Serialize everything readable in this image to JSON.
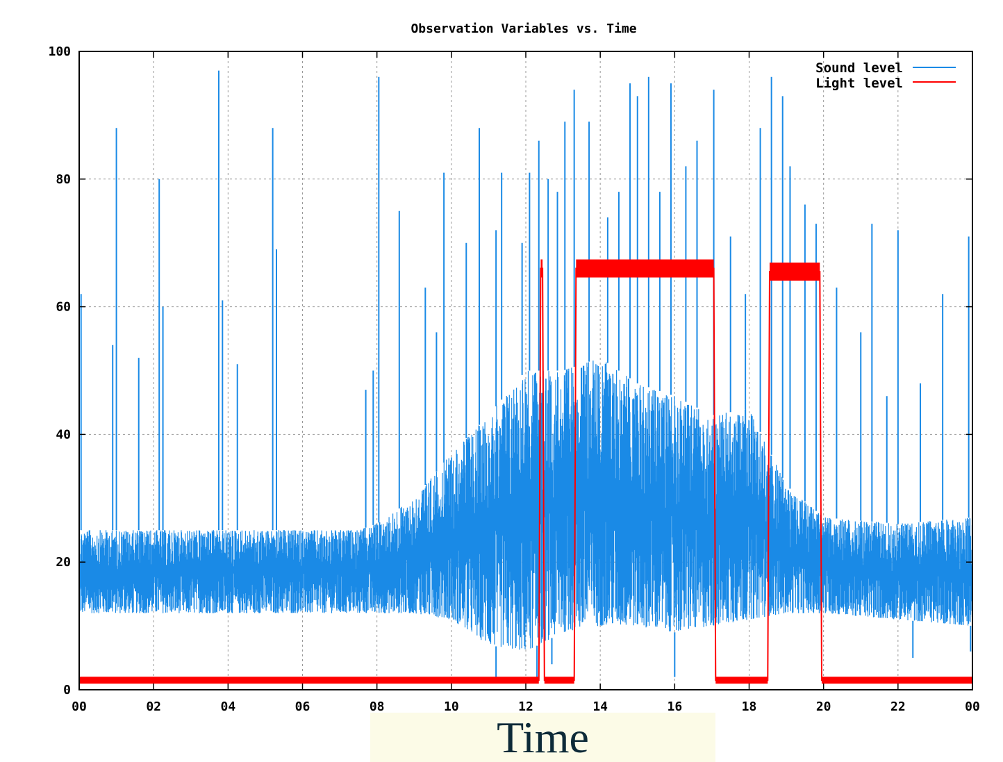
{
  "chart_data": {
    "type": "line",
    "title": "Observation Variables vs. Time",
    "xlabel": "Time",
    "ylabel": "",
    "xlim": [
      0,
      24
    ],
    "ylim": [
      0,
      100
    ],
    "x_ticks": [
      "00",
      "02",
      "04",
      "06",
      "08",
      "10",
      "12",
      "14",
      "16",
      "18",
      "20",
      "22",
      "00"
    ],
    "y_ticks": [
      "0",
      "20",
      "40",
      "60",
      "80",
      "100"
    ],
    "grid": true,
    "legend_position": "top-right",
    "series": [
      {
        "name": "Sound level",
        "color": "#1a8ae6",
        "style": "dense noisy line",
        "envelope": {
          "x": [
            0,
            2,
            4,
            6,
            7.5,
            8,
            9,
            10,
            11,
            12,
            13,
            14,
            15,
            16,
            17,
            18,
            19,
            20,
            22,
            24
          ],
          "low": [
            12,
            12,
            12,
            12,
            12,
            12,
            12,
            11,
            7,
            6,
            9,
            10,
            10,
            9,
            10,
            11,
            12,
            12,
            11,
            10
          ],
          "high": [
            25,
            25,
            25,
            25,
            25,
            26,
            30,
            37,
            43,
            50,
            50,
            52,
            48,
            46,
            43,
            44,
            32,
            27,
            26,
            27
          ]
        },
        "spikes": [
          {
            "x": 0.05,
            "y": 62
          },
          {
            "x": 0.9,
            "y": 54
          },
          {
            "x": 1.0,
            "y": 88
          },
          {
            "x": 1.6,
            "y": 52
          },
          {
            "x": 2.15,
            "y": 80
          },
          {
            "x": 2.25,
            "y": 60
          },
          {
            "x": 3.75,
            "y": 97
          },
          {
            "x": 3.85,
            "y": 61
          },
          {
            "x": 4.25,
            "y": 51
          },
          {
            "x": 5.2,
            "y": 88
          },
          {
            "x": 5.3,
            "y": 69
          },
          {
            "x": 7.7,
            "y": 47
          },
          {
            "x": 7.9,
            "y": 50
          },
          {
            "x": 8.05,
            "y": 96
          },
          {
            "x": 8.6,
            "y": 75
          },
          {
            "x": 9.3,
            "y": 63
          },
          {
            "x": 9.6,
            "y": 56
          },
          {
            "x": 9.8,
            "y": 81
          },
          {
            "x": 10.4,
            "y": 70
          },
          {
            "x": 10.75,
            "y": 88
          },
          {
            "x": 11.2,
            "y": 72
          },
          {
            "x": 11.35,
            "y": 81
          },
          {
            "x": 11.9,
            "y": 70
          },
          {
            "x": 12.1,
            "y": 81
          },
          {
            "x": 12.35,
            "y": 86
          },
          {
            "x": 12.6,
            "y": 80
          },
          {
            "x": 12.85,
            "y": 78
          },
          {
            "x": 13.05,
            "y": 89
          },
          {
            "x": 13.3,
            "y": 94
          },
          {
            "x": 13.7,
            "y": 89
          },
          {
            "x": 14.2,
            "y": 74
          },
          {
            "x": 14.5,
            "y": 78
          },
          {
            "x": 14.8,
            "y": 95
          },
          {
            "x": 15.0,
            "y": 93
          },
          {
            "x": 15.3,
            "y": 96
          },
          {
            "x": 15.6,
            "y": 78
          },
          {
            "x": 15.9,
            "y": 95
          },
          {
            "x": 16.3,
            "y": 82
          },
          {
            "x": 16.6,
            "y": 86
          },
          {
            "x": 17.05,
            "y": 94
          },
          {
            "x": 17.5,
            "y": 71
          },
          {
            "x": 17.9,
            "y": 62
          },
          {
            "x": 18.3,
            "y": 88
          },
          {
            "x": 18.6,
            "y": 96
          },
          {
            "x": 18.9,
            "y": 93
          },
          {
            "x": 19.1,
            "y": 82
          },
          {
            "x": 19.5,
            "y": 76
          },
          {
            "x": 19.8,
            "y": 73
          },
          {
            "x": 20.35,
            "y": 63
          },
          {
            "x": 21.0,
            "y": 56
          },
          {
            "x": 21.3,
            "y": 73
          },
          {
            "x": 21.7,
            "y": 46
          },
          {
            "x": 22.0,
            "y": 72
          },
          {
            "x": 22.6,
            "y": 48
          },
          {
            "x": 23.2,
            "y": 62
          },
          {
            "x": 23.9,
            "y": 71
          }
        ],
        "dips": [
          {
            "x": 11.2,
            "y": 1
          },
          {
            "x": 12.3,
            "y": 2
          },
          {
            "x": 12.7,
            "y": 4
          },
          {
            "x": 16.0,
            "y": 2
          },
          {
            "x": 22.4,
            "y": 5
          },
          {
            "x": 23.95,
            "y": 6
          }
        ]
      },
      {
        "name": "Light level",
        "color": "#ff0000",
        "style": "thick band",
        "x": [
          0,
          12.35,
          12.4,
          12.45,
          12.5,
          13.3,
          13.35,
          17.05,
          17.1,
          18.5,
          18.55,
          19.9,
          19.95,
          24
        ],
        "y": [
          1.5,
          1.5,
          66,
          66,
          1.5,
          1.5,
          66,
          66,
          1.5,
          1.5,
          65.5,
          65.5,
          1.5,
          1.5
        ]
      }
    ]
  }
}
